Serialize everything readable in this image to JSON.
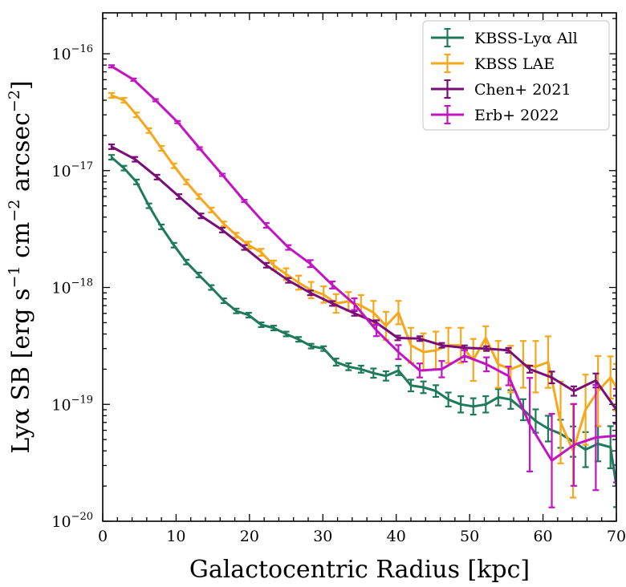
{
  "chart_data": {
    "type": "line",
    "title": "",
    "xlabel": "Galactocentric Radius [kpc]",
    "ylabel": "Lyα SB [erg s⁻¹ cm⁻² arcsec⁻²]",
    "ylabel_parts": {
      "base": "Lyα SB [erg s",
      "e1": "−1",
      "mid1": " cm",
      "e2": "−2",
      "mid2": " arcsec",
      "e3": "−2",
      "end": "]"
    },
    "xlim": [
      0,
      70
    ],
    "ylim_log10": [
      -20,
      -15.65
    ],
    "yscale": "log",
    "xticks": [
      0,
      10,
      20,
      30,
      40,
      50,
      60,
      70
    ],
    "yticks": [
      {
        "exp": -20,
        "base": "10",
        "sup": "−20"
      },
      {
        "exp": -19,
        "base": "10",
        "sup": "−19"
      },
      {
        "exp": -18,
        "base": "10",
        "sup": "−18"
      },
      {
        "exp": -17,
        "base": "10",
        "sup": "−17"
      },
      {
        "exp": -16,
        "base": "10",
        "sup": "−16"
      }
    ],
    "legend_placement": "upper-right",
    "series": [
      {
        "name": "KBSS-Lyα All",
        "color": "#1f7a5c",
        "x": [
          1.2,
          2.9,
          4.6,
          6.3,
          8.0,
          9.7,
          11.4,
          13.1,
          14.8,
          16.5,
          18.2,
          19.9,
          21.6,
          23.3,
          25.0,
          26.7,
          28.4,
          30.1,
          31.8,
          33.5,
          35.2,
          36.9,
          38.6,
          40.3,
          42.0,
          43.7,
          45.4,
          47.1,
          48.8,
          50.5,
          52.2,
          53.9,
          55.6,
          57.3,
          59.0,
          60.7,
          62.4,
          64.1,
          65.8,
          67.5,
          69.2,
          70.0
        ],
        "y": [
          1.3e-17,
          1.05e-17,
          8e-18,
          5e-18,
          3.3e-18,
          2.3e-18,
          1.65e-18,
          1.28e-18,
          1e-18,
          7.7e-19,
          6.3e-19,
          5.8e-19,
          4.8e-19,
          4.5e-19,
          4e-19,
          3.6e-19,
          3.15e-19,
          3e-19,
          2.3e-19,
          2.1e-19,
          2e-19,
          1.85e-19,
          1.75e-19,
          1.95e-19,
          1.45e-19,
          1.4e-19,
          1.3e-19,
          1.1e-19,
          1e-19,
          9.6e-20,
          1e-19,
          1.15e-19,
          1.1e-19,
          9e-20,
          7.2e-20,
          6.2e-20,
          5.6e-20,
          4.8e-20,
          4.1e-20,
          4.6e-20,
          4.3e-20,
          2e-20
        ],
        "err_dex": [
          0.02,
          0.02,
          0.02,
          0.02,
          0.02,
          0.02,
          0.02,
          0.02,
          0.02,
          0.02,
          0.02,
          0.02,
          0.02,
          0.02,
          0.02,
          0.02,
          0.02,
          0.02,
          0.03,
          0.03,
          0.03,
          0.04,
          0.04,
          0.04,
          0.05,
          0.05,
          0.05,
          0.06,
          0.07,
          0.07,
          0.07,
          0.07,
          0.08,
          0.09,
          0.1,
          0.11,
          0.12,
          0.13,
          0.15,
          0.15,
          0.18,
          0.18
        ]
      },
      {
        "name": "KBSS LAE",
        "color": "#f5a81c",
        "x": [
          1.2,
          2.9,
          4.6,
          6.3,
          8.0,
          9.7,
          11.4,
          13.1,
          14.8,
          16.5,
          18.2,
          19.9,
          21.6,
          23.3,
          25.0,
          26.7,
          28.4,
          30.1,
          31.8,
          33.5,
          35.2,
          36.9,
          38.6,
          40.3,
          42.0,
          43.7,
          45.4,
          47.1,
          48.8,
          50.5,
          52.2,
          53.9,
          55.6,
          57.3,
          59.0,
          60.7,
          62.4,
          64.1,
          65.8,
          67.5,
          69.2,
          70.0
        ],
        "y": [
          4.4e-17,
          4e-17,
          3e-17,
          2.2e-17,
          1.55e-17,
          1.1e-17,
          8e-18,
          6e-18,
          4.6e-18,
          3.5e-18,
          2.8e-18,
          2.3e-18,
          2e-18,
          1.55e-18,
          1.3e-18,
          1.1e-18,
          9.5e-19,
          8.7e-19,
          7.3e-19,
          7.6e-19,
          7e-19,
          6.1e-19,
          4.7e-19,
          6.1e-19,
          3.2e-19,
          2.8e-19,
          2.9e-19,
          3.2e-19,
          3.2e-19,
          2.4e-19,
          3.7e-19,
          2.2e-19,
          2e-19,
          2.2e-19,
          2.1e-19,
          2.3e-19,
          7e-20,
          4e-20,
          9e-20,
          1.3e-19,
          1.7e-19,
          1.4e-19
        ],
        "err_dex": [
          0.02,
          0.02,
          0.02,
          0.02,
          0.02,
          0.02,
          0.02,
          0.02,
          0.02,
          0.02,
          0.02,
          0.03,
          0.03,
          0.04,
          0.05,
          0.06,
          0.07,
          0.07,
          0.08,
          0.08,
          0.09,
          0.1,
          0.12,
          0.1,
          0.15,
          0.16,
          0.16,
          0.15,
          0.15,
          0.18,
          0.1,
          0.2,
          0.2,
          0.2,
          0.22,
          0.22,
          0.35,
          0.4,
          0.3,
          0.3,
          0.18,
          0.2
        ]
      },
      {
        "name": "Chen+ 2021",
        "color": "#7a0e78",
        "x": [
          1.2,
          4.4,
          7.4,
          10.4,
          13.4,
          16.3,
          19.3,
          22.3,
          25.3,
          28.3,
          31.3,
          34.3,
          37.3,
          40.2,
          43.2,
          46.2,
          49.3,
          52.3,
          55.3,
          58.2,
          61.2,
          64.2,
          67.2,
          70.0
        ],
        "y": [
          1.6e-17,
          1.25e-17,
          8.8e-18,
          6e-18,
          4.1e-18,
          3.1e-18,
          2.2e-18,
          1.55e-18,
          1.15e-18,
          9e-19,
          7.3e-19,
          6e-19,
          5e-19,
          3.7e-19,
          3.65e-19,
          3.2e-19,
          3.05e-19,
          3e-19,
          2.9e-19,
          2e-19,
          1.7e-19,
          1.3e-19,
          1.6e-19,
          9e-20
        ],
        "err_dex": [
          0.02,
          0.02,
          0.02,
          0.02,
          0.02,
          0.02,
          0.02,
          0.02,
          0.02,
          0.02,
          0.02,
          0.02,
          0.02,
          0.02,
          0.02,
          0.02,
          0.02,
          0.02,
          0.02,
          0.03,
          0.05,
          0.04,
          0.06,
          0.12
        ]
      },
      {
        "name": "Erb+ 2022",
        "color": "#c214c2",
        "x": [
          1.2,
          4.2,
          7.2,
          10.2,
          13.2,
          16.3,
          19.3,
          22.3,
          25.3,
          28.3,
          31.3,
          34.3,
          37.3,
          40.3,
          43.2,
          46.2,
          49.3,
          52.3,
          55.3,
          58.2,
          61.2,
          64.2,
          67.2,
          70.0
        ],
        "y": [
          7.8e-17,
          6e-17,
          4e-17,
          2.6e-17,
          1.55e-17,
          9.2e-18,
          5.5e-18,
          3.4e-18,
          2.2e-18,
          1.6e-18,
          1.05e-18,
          7.2e-19,
          4.3e-19,
          2.8e-19,
          1.95e-19,
          2e-19,
          2.6e-19,
          2.2e-19,
          1.75e-19,
          6.7e-20,
          3.3e-20,
          4.5e-20,
          5.2e-20,
          5.4e-20
        ],
        "err_dex": [
          0.01,
          0.01,
          0.01,
          0.01,
          0.01,
          0.01,
          0.01,
          0.02,
          0.02,
          0.03,
          0.03,
          0.05,
          0.05,
          0.06,
          0.06,
          0.07,
          0.05,
          0.06,
          0.08,
          0.4,
          0.4,
          0.35,
          0.45,
          0.4
        ]
      }
    ]
  }
}
